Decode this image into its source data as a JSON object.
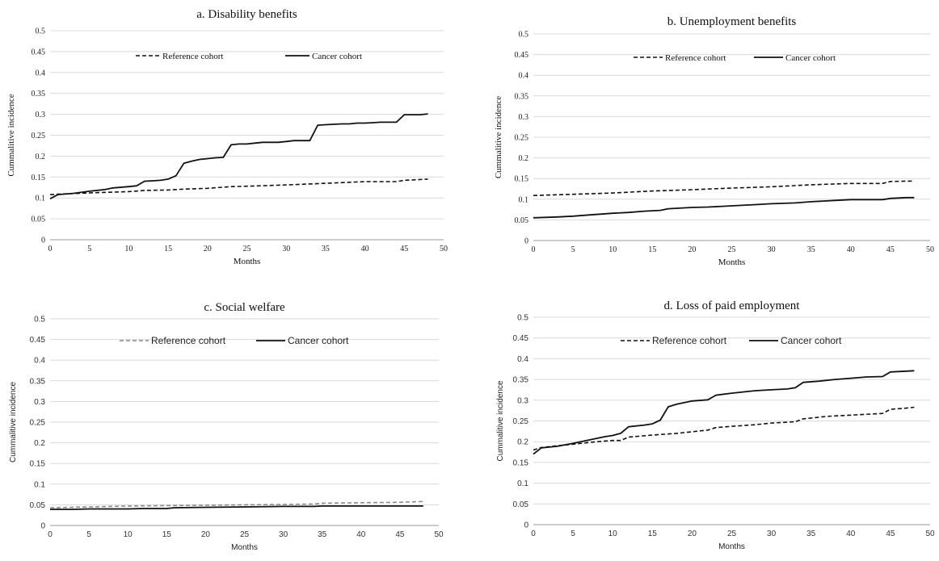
{
  "chart_data": [
    {
      "type": "line",
      "title": "a. Disability benefits",
      "xlabel": "Months",
      "ylabel": "Cummalitive incidence",
      "xlim": [
        0,
        50
      ],
      "ylim": [
        0,
        0.5
      ],
      "xticks": [
        "0",
        "5",
        "10",
        "15",
        "20",
        "25",
        "30",
        "35",
        "40",
        "45",
        "50"
      ],
      "yticks": [
        "0",
        "0.05",
        "0.1",
        "0.15",
        "0.2",
        "0.25",
        "0.3",
        "0.35",
        "0.4",
        "0.45",
        "0.5"
      ],
      "grid": true,
      "legend": "top",
      "series": [
        {
          "name": "Reference cohort",
          "style": "dashed",
          "color": "#111111",
          "x": [
            0,
            1,
            5,
            10,
            12,
            15,
            17,
            20,
            23,
            25,
            30,
            35,
            40,
            44,
            45,
            46,
            48
          ],
          "y": [
            0.108,
            0.109,
            0.112,
            0.115,
            0.118,
            0.119,
            0.121,
            0.123,
            0.127,
            0.128,
            0.131,
            0.135,
            0.139,
            0.139,
            0.142,
            0.143,
            0.145
          ]
        },
        {
          "name": "Cancer cohort",
          "style": "solid",
          "color": "#111111",
          "x": [
            0,
            1,
            3,
            5,
            7,
            8,
            10,
            11,
            12,
            13,
            14,
            15,
            16,
            17,
            18,
            19,
            20,
            21,
            22,
            23,
            24,
            25,
            26,
            27,
            28,
            29,
            30,
            31,
            32,
            33,
            34,
            35,
            36,
            37,
            38,
            39,
            40,
            41,
            42,
            43,
            44,
            45,
            46,
            47,
            48
          ],
          "y": [
            0.098,
            0.108,
            0.111,
            0.116,
            0.12,
            0.124,
            0.127,
            0.129,
            0.14,
            0.141,
            0.142,
            0.145,
            0.153,
            0.183,
            0.188,
            0.192,
            0.194,
            0.196,
            0.197,
            0.227,
            0.229,
            0.229,
            0.231,
            0.233,
            0.233,
            0.233,
            0.235,
            0.237,
            0.237,
            0.237,
            0.274,
            0.275,
            0.276,
            0.277,
            0.277,
            0.279,
            0.279,
            0.28,
            0.281,
            0.281,
            0.281,
            0.299,
            0.299,
            0.299,
            0.301
          ]
        }
      ]
    },
    {
      "type": "line",
      "title": "b. Unemployment benefits",
      "xlabel": "Months",
      "ylabel": "Cummalitive incidence",
      "xlim": [
        0,
        50
      ],
      "ylim": [
        0,
        0.5
      ],
      "xticks": [
        "0",
        "5",
        "10",
        "15",
        "20",
        "25",
        "30",
        "35",
        "40",
        "45",
        "50"
      ],
      "yticks": [
        "0",
        "0.05",
        "0.1",
        "0.15",
        "0.2",
        "0.25",
        "0.3",
        "0.35",
        "0.4",
        "0.45",
        "0.5"
      ],
      "grid": true,
      "legend": "top",
      "series": [
        {
          "name": "Reference cohort",
          "style": "dashed",
          "color": "#111111",
          "x": [
            0,
            5,
            10,
            15,
            20,
            25,
            30,
            35,
            40,
            44,
            45,
            48
          ],
          "y": [
            0.109,
            0.112,
            0.115,
            0.12,
            0.123,
            0.127,
            0.13,
            0.135,
            0.138,
            0.138,
            0.143,
            0.144
          ]
        },
        {
          "name": "Cancer cohort",
          "style": "solid",
          "color": "#111111",
          "x": [
            0,
            3,
            5,
            7,
            10,
            12,
            14,
            16,
            17,
            20,
            22,
            25,
            28,
            30,
            33,
            35,
            38,
            40,
            44,
            45,
            47,
            48
          ],
          "y": [
            0.055,
            0.057,
            0.059,
            0.062,
            0.066,
            0.068,
            0.071,
            0.073,
            0.077,
            0.08,
            0.081,
            0.084,
            0.087,
            0.089,
            0.091,
            0.094,
            0.097,
            0.099,
            0.099,
            0.102,
            0.104,
            0.104
          ]
        }
      ]
    },
    {
      "type": "line",
      "title": "c. Social welfare",
      "xlabel": "Months",
      "ylabel": "Cummalitive incidence",
      "xlim": [
        0,
        50
      ],
      "ylim": [
        0,
        0.5
      ],
      "xticks": [
        "0",
        "5",
        "10",
        "15",
        "20",
        "25",
        "30",
        "35",
        "40",
        "45",
        "50"
      ],
      "yticks": [
        "0",
        "0.05",
        "0.1",
        "0.15",
        "0.2",
        "0.25",
        "0.3",
        "0.35",
        "0.4",
        "0.45",
        "0.5"
      ],
      "grid": true,
      "legend": "top",
      "series": [
        {
          "name": "Reference cohort",
          "style": "dashed",
          "color": "#8a8a8a",
          "x": [
            0,
            5,
            10,
            15,
            20,
            25,
            30,
            34,
            35,
            40,
            45,
            48
          ],
          "y": [
            0.043,
            0.045,
            0.047,
            0.048,
            0.049,
            0.05,
            0.051,
            0.052,
            0.054,
            0.055,
            0.056,
            0.058
          ]
        },
        {
          "name": "Cancer cohort",
          "style": "solid",
          "color": "#111111",
          "x": [
            0,
            3,
            5,
            10,
            12,
            15,
            16,
            20,
            25,
            30,
            34,
            35,
            40,
            45,
            48
          ],
          "y": [
            0.039,
            0.039,
            0.04,
            0.04,
            0.041,
            0.041,
            0.043,
            0.044,
            0.045,
            0.046,
            0.046,
            0.047,
            0.047,
            0.047,
            0.047
          ]
        }
      ]
    },
    {
      "type": "line",
      "title": "d. Loss of paid employment",
      "xlabel": "Months",
      "ylabel": "Cummalitive incidence",
      "xlim": [
        0,
        50
      ],
      "ylim": [
        0,
        0.5
      ],
      "xticks": [
        "0",
        "5",
        "10",
        "15",
        "20",
        "25",
        "30",
        "35",
        "40",
        "45",
        "50"
      ],
      "yticks": [
        "0",
        "0.05",
        "0.1",
        "0.15",
        "0.2",
        "0.25",
        "0.3",
        "0.35",
        "0.4",
        "0.45",
        "0.5"
      ],
      "grid": true,
      "legend": "top",
      "series": [
        {
          "name": "Reference cohort",
          "style": "dashed",
          "color": "#111111",
          "x": [
            0,
            1,
            3,
            5,
            8,
            10,
            11,
            12,
            15,
            18,
            20,
            22,
            23,
            25,
            28,
            30,
            33,
            34,
            35,
            37,
            40,
            44,
            45,
            47,
            48
          ],
          "y": [
            0.18,
            0.186,
            0.19,
            0.194,
            0.2,
            0.203,
            0.203,
            0.211,
            0.216,
            0.22,
            0.224,
            0.228,
            0.234,
            0.237,
            0.241,
            0.245,
            0.248,
            0.255,
            0.257,
            0.261,
            0.264,
            0.268,
            0.278,
            0.281,
            0.283
          ]
        },
        {
          "name": "Cancer cohort",
          "style": "solid",
          "color": "#111111",
          "x": [
            0,
            1,
            3,
            5,
            7,
            9,
            10,
            11,
            12,
            14,
            15,
            16,
            17,
            18,
            20,
            22,
            23,
            25,
            27,
            28,
            30,
            32,
            33,
            34,
            36,
            38,
            40,
            42,
            44,
            45,
            46,
            48
          ],
          "y": [
            0.17,
            0.185,
            0.189,
            0.196,
            0.204,
            0.212,
            0.215,
            0.22,
            0.236,
            0.24,
            0.243,
            0.252,
            0.284,
            0.29,
            0.298,
            0.301,
            0.312,
            0.317,
            0.321,
            0.323,
            0.325,
            0.327,
            0.33,
            0.343,
            0.346,
            0.35,
            0.353,
            0.356,
            0.357,
            0.368,
            0.369,
            0.371
          ]
        }
      ]
    }
  ]
}
